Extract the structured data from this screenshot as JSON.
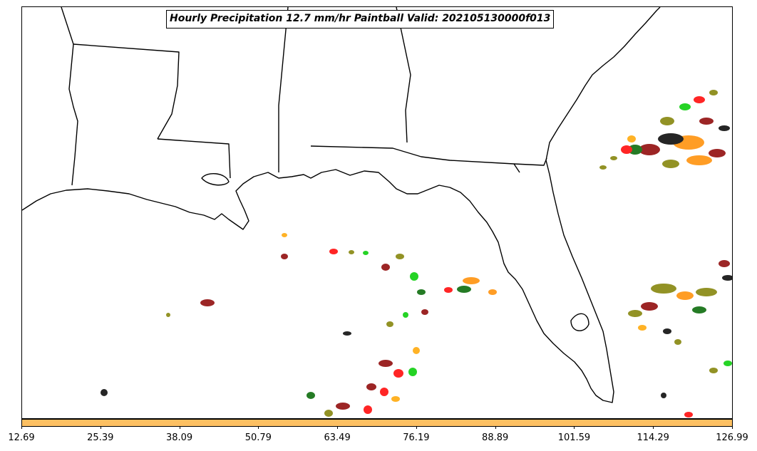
{
  "title": "Hourly Precipitation 12.7 mm/hr Paintball Valid: 202105130000f013",
  "colorbar": {
    "color": "#fdc062",
    "ticks": [
      "12.69",
      "25.39",
      "38.09",
      "50.79",
      "63.49",
      "76.19",
      "88.89",
      "101.59",
      "114.29",
      "126.99"
    ]
  },
  "member_colors": [
    "#ff0000",
    "#00cc00",
    "#8b0000",
    "#808000",
    "#ff8c00",
    "#000000",
    "#006400",
    "#ffa500"
  ]
}
